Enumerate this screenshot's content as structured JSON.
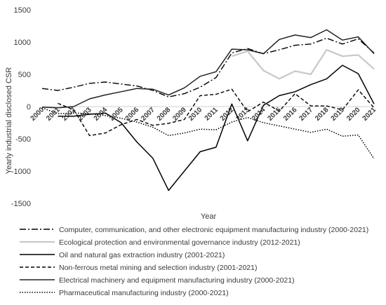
{
  "chart_data": {
    "type": "line",
    "title": "",
    "xlabel": "Year",
    "ylabel": "Yearly industrial disclosed CSR",
    "ylim": [
      -1500,
      1500
    ],
    "yticks": [
      "1500",
      "1000",
      "500",
      "0",
      "-500",
      "-1000",
      "-1500"
    ],
    "yticks_values": [
      1500,
      1000,
      500,
      0,
      -500,
      -1000,
      -1500
    ],
    "x": [
      "2000",
      "2001",
      "2002",
      "2003",
      "2004",
      "2005",
      "2006",
      "2007",
      "2008",
      "2009",
      "2010",
      "2011",
      "2012",
      "2013",
      "2014",
      "2015",
      "2016",
      "2017",
      "2018",
      "2019",
      "2020",
      "2021"
    ],
    "grid": false,
    "legend_position": "bottom",
    "series": [
      {
        "name": "Computer, communication, and other electronic equipment manufacturing industry (2000-2021)",
        "style": "dashdot",
        "color": "#000000",
        "values": [
          280,
          250,
          300,
          360,
          380,
          350,
          320,
          250,
          150,
          200,
          300,
          450,
          830,
          900,
          820,
          880,
          950,
          970,
          1060,
          970,
          1050,
          830
        ]
      },
      {
        "name": "Ecological protection and environmental governance industry (2012-2021)",
        "style": "solid-light",
        "color": "#c8c8c8",
        "values": [
          null,
          null,
          null,
          null,
          null,
          null,
          null,
          null,
          null,
          null,
          null,
          null,
          780,
          860,
          560,
          430,
          550,
          500,
          880,
          780,
          800,
          580
        ]
      },
      {
        "name": "Oil and natural gas extraction industry (2001-2021)",
        "style": "solid",
        "color": "#000000",
        "values": [
          null,
          -150,
          -150,
          -120,
          -100,
          -250,
          -550,
          -800,
          -1300,
          -1000,
          -700,
          -630,
          40,
          -530,
          20,
          170,
          230,
          340,
          430,
          640,
          510,
          40
        ]
      },
      {
        "name": "Non-ferrous metal mining and selection industry (2001-2021)",
        "style": "dashed",
        "color": "#000000",
        "values": [
          null,
          50,
          -50,
          -450,
          -410,
          -280,
          -200,
          -290,
          -260,
          -200,
          170,
          190,
          270,
          -80,
          70,
          -70,
          200,
          10,
          10,
          -50,
          260,
          -20
        ]
      },
      {
        "name": "Electrical machinery and equipment manufacturing industry (2000-2021)",
        "style": "solid",
        "color": "#222222",
        "values": [
          -10,
          -20,
          0,
          120,
          180,
          230,
          280,
          270,
          180,
          290,
          470,
          540,
          890,
          880,
          820,
          1040,
          1110,
          1070,
          1190,
          1030,
          1080,
          820
        ]
      },
      {
        "name": "Pharmaceutical manufacturing industry (2000-2021)",
        "style": "dotted",
        "color": "#000000",
        "values": [
          -20,
          -110,
          -100,
          -110,
          -140,
          -180,
          -240,
          -320,
          -450,
          -410,
          -350,
          -360,
          -240,
          -170,
          -250,
          -300,
          -350,
          -400,
          -350,
          -460,
          -440,
          -810
        ]
      }
    ]
  }
}
